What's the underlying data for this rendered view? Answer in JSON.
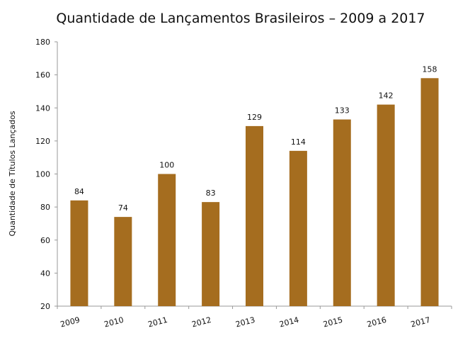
{
  "chart_data": {
    "type": "bar",
    "title": "Quantidade de Lançamentos Brasileiros – 2009 a 2017",
    "xlabel": "",
    "ylabel": "Quantidade de Títulos Lançados",
    "categories": [
      "2009",
      "2010",
      "2011",
      "2012",
      "2013",
      "2014",
      "2015",
      "2016",
      "2017"
    ],
    "values": [
      84,
      74,
      100,
      83,
      129,
      114,
      133,
      142,
      158
    ],
    "ylim": [
      20,
      180
    ],
    "yticks": [
      20,
      40,
      60,
      80,
      100,
      120,
      140,
      160,
      180
    ],
    "grid": false,
    "legend": "none",
    "bar_color": "#a56d1f"
  }
}
